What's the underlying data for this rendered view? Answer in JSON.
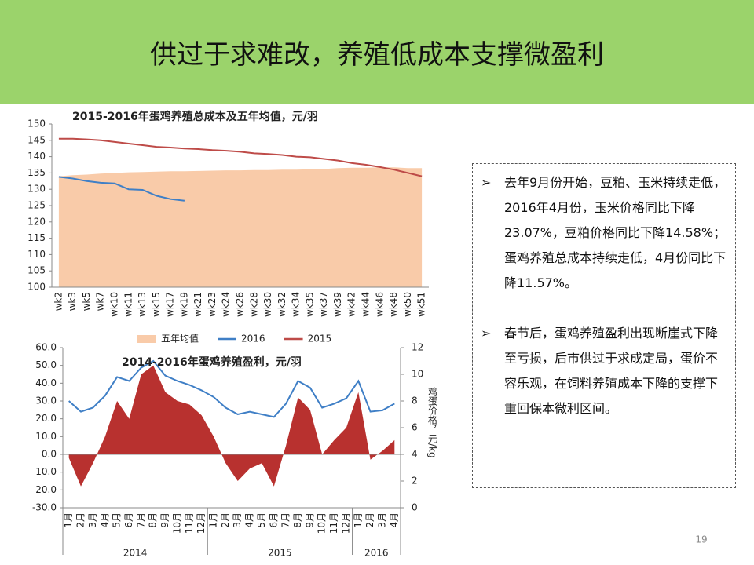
{
  "slide": {
    "title": "供过于求难改，养殖低成本支撑微盈利",
    "bullets": [
      "去年9月份开始，豆粕、玉米持续走低，2016年4月份，玉米价格同比下降23.07%，豆粕价格同比下降14.58%；蛋鸡养殖总成本持续走低，4月份同比下降11.57%。",
      "春节后，蛋鸡养殖盈利出现断崖式下降至亏损，后市供过于求成定局，蛋价不容乐观，在饲料养殖成本下降的支撑下重回保本微利区间。"
    ],
    "page_number": "19"
  },
  "chart_data": [
    {
      "type": "line",
      "title": "2015-2016年蛋鸡养殖总成本及五年均值，元/羽",
      "categories": [
        "wk2",
        "wk3",
        "wk5",
        "wk7",
        "wk10",
        "wk11",
        "wk13",
        "wk15",
        "wk17",
        "wk19",
        "wk21",
        "wk23",
        "wk24",
        "wk26",
        "wk28",
        "wk30",
        "wk32",
        "wk34",
        "wk35",
        "wk37",
        "wk39",
        "wk42",
        "wk44",
        "wk46",
        "wk48",
        "wk50",
        "wk51"
      ],
      "series": [
        {
          "name": "五年均值",
          "style": "area",
          "color": "#f9cba9",
          "values": [
            134,
            134.3,
            134.5,
            134.8,
            135,
            135.2,
            135.3,
            135.4,
            135.5,
            135.5,
            135.6,
            135.7,
            135.8,
            135.8,
            135.9,
            135.9,
            136,
            136,
            136.1,
            136.2,
            136.5,
            136.6,
            136.6,
            136.7,
            136.7,
            136.5,
            136.5
          ]
        },
        {
          "name": "2016",
          "style": "line",
          "color": "#3f7fc6",
          "values": [
            133.8,
            133.3,
            132.5,
            132,
            131.8,
            130,
            129.8,
            128,
            127,
            126.5,
            null,
            null,
            null,
            null,
            null,
            null,
            null,
            null,
            null,
            null,
            null,
            null,
            null,
            null,
            null,
            null,
            null
          ]
        },
        {
          "name": "2015",
          "style": "line",
          "color": "#be4b48",
          "values": [
            145.5,
            145.5,
            145.3,
            145,
            144.5,
            144,
            143.5,
            143,
            142.8,
            142.5,
            142.3,
            142,
            141.8,
            141.5,
            141,
            140.8,
            140.5,
            140,
            139.8,
            139.3,
            138.8,
            138,
            137.5,
            136.8,
            136,
            135,
            134
          ]
        }
      ],
      "ylim": [
        100,
        150
      ],
      "yticks": [
        100,
        105,
        110,
        115,
        120,
        125,
        130,
        135,
        140,
        145,
        150
      ],
      "legend": "bottom"
    },
    {
      "type": "line",
      "title": "2014-2016年蛋鸡养殖盈利，元/羽",
      "categories": [
        "1月",
        "2月",
        "3月",
        "4月",
        "5月",
        "6月",
        "7月",
        "8月",
        "9月",
        "10月",
        "11月",
        "12月",
        "1月",
        "2月",
        "3月",
        "4月",
        "5月",
        "6月",
        "7月",
        "8月",
        "9月",
        "10月",
        "11月",
        "12月",
        "1月",
        "2月",
        "3月",
        "4月"
      ],
      "year_labels": [
        "2014",
        "2015",
        "2016"
      ],
      "series": [
        {
          "style": "area",
          "color": "#b8312f",
          "values": [
            -2,
            -18,
            -5,
            10,
            30,
            20,
            45,
            50,
            35,
            30,
            28,
            22,
            10,
            -5,
            -15,
            -8,
            -5,
            -18,
            5,
            32,
            25,
            0,
            8,
            15,
            35,
            -3,
            2,
            8
          ]
        },
        {
          "style": "line",
          "axis": "y2",
          "color": "#3f7fc6",
          "values": [
            8,
            7.2,
            7.5,
            8.4,
            9.8,
            9.5,
            10.5,
            11,
            9.9,
            9.5,
            9.2,
            8.8,
            8.3,
            7.5,
            7,
            7.2,
            7,
            6.8,
            7.8,
            9.5,
            9,
            7.5,
            7.8,
            8.2,
            9.5,
            7.2,
            7.3,
            7.8
          ]
        }
      ],
      "ylim": [
        -30,
        60
      ],
      "yticks": [
        {
          "value": -30,
          "label": "-30.0"
        },
        {
          "value": -20,
          "label": "-20.0"
        },
        {
          "value": -10,
          "label": "-10.0"
        },
        {
          "value": 0,
          "label": "0.0"
        },
        {
          "value": 10,
          "label": "10.0"
        },
        {
          "value": 20,
          "label": "20.0"
        },
        {
          "value": 30,
          "label": "30.0"
        },
        {
          "value": 40,
          "label": "40.0"
        },
        {
          "value": 50,
          "label": "50.0"
        },
        {
          "value": 60,
          "label": "60.0"
        }
      ],
      "y2lim": [
        0,
        12
      ],
      "y2ticks": [
        0,
        2,
        4,
        6,
        8,
        10,
        12
      ],
      "y2label": "鸡蛋价格，元/kg"
    }
  ]
}
